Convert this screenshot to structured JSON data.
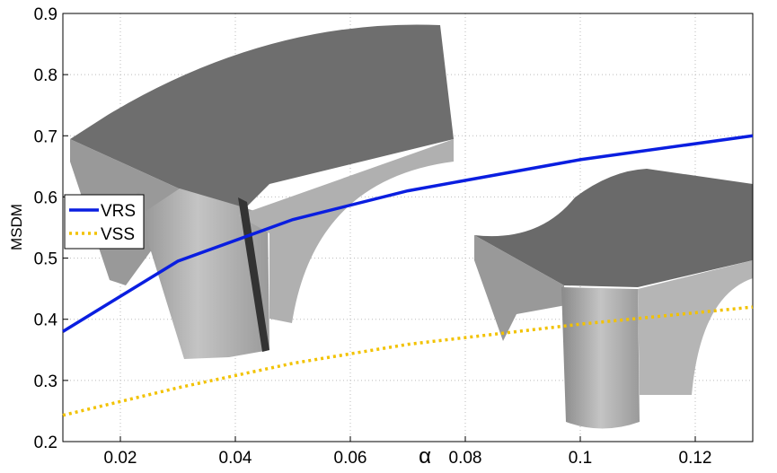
{
  "chart_data": {
    "type": "line",
    "x_label": "α",
    "y_label": "MSDM",
    "x": [
      0.01,
      0.03,
      0.05,
      0.07,
      0.1,
      0.13
    ],
    "series": [
      {
        "name": "VRS",
        "color": "#0a1ee0",
        "style": "solid",
        "values": [
          0.38,
          0.495,
          0.563,
          0.61,
          0.661,
          0.7
        ]
      },
      {
        "name": "VSS",
        "color": "#f2c200",
        "style": "dotted",
        "values": [
          0.243,
          0.288,
          0.328,
          0.359,
          0.392,
          0.42
        ]
      }
    ],
    "xlim": [
      0.01,
      0.13
    ],
    "xticks": [
      0.02,
      0.04,
      0.06,
      0.08,
      0.1,
      0.12
    ],
    "ylim": [
      0.2,
      0.9
    ],
    "yticks": [
      0.2,
      0.3,
      0.4,
      0.5,
      0.6,
      0.7,
      0.8,
      0.9
    ],
    "grid": true,
    "legend": "left"
  }
}
